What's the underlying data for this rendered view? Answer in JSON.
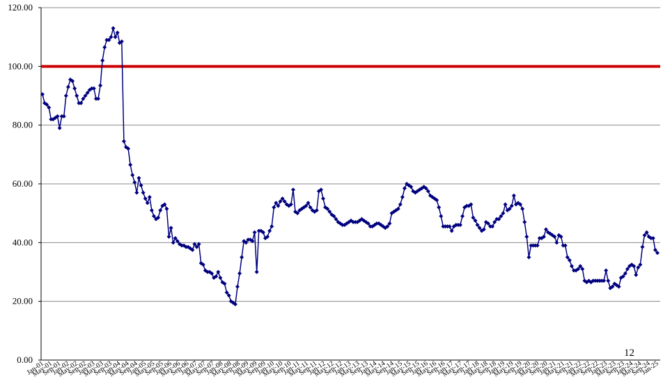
{
  "page_number": "12",
  "chart_data": {
    "type": "line",
    "ylim": [
      0,
      120
    ],
    "yticks": [
      "0.00",
      "20.00",
      "40.00",
      "60.00",
      "80.00",
      "100.00",
      "120.00"
    ],
    "grid": true,
    "reference_line": {
      "value": 100,
      "color": "#cc0000"
    },
    "series_color": "#00007f",
    "xtick_labels": [
      "Jan-01",
      "May-01",
      "Sep-01",
      "Jan-02",
      "May-02",
      "Sep-02",
      "Jan-03",
      "May-03",
      "Sep-03",
      "Jan-04",
      "May-04",
      "Sep-04",
      "Jan-05",
      "May-05",
      "Sep-05",
      "Jan-06",
      "May-06",
      "Sep-06",
      "Jan-07",
      "May-07",
      "Sep-07",
      "Jan-08",
      "May-08",
      "Sep-08",
      "Jan-09",
      "May-09",
      "Sep-09",
      "Jan-10",
      "May-10",
      "Sep-10",
      "Jan-11",
      "May-11",
      "Sep-11",
      "Jan-12",
      "May-12",
      "Sep-12",
      "Jan-13",
      "May-13",
      "Sep-13",
      "Jan-14",
      "May-14",
      "Sep-14",
      "Jan-15",
      "May-15",
      "Sep-15",
      "Jan-16",
      "May-16",
      "Sep-16",
      "Jan-17",
      "May-17",
      "Sep-17",
      "Jan-18",
      "May-18",
      "Sep-18",
      "Jan-19",
      "May-19",
      "Sep-19",
      "Jan-20",
      "May-20",
      "Sep-20",
      "Jan-21",
      "May-21",
      "Sep-21",
      "Jan-22",
      "May-22",
      "Sep-22",
      "Jan-23",
      "May-23",
      "Sep-23",
      "Jan-24",
      "May-24",
      "Sep-24",
      "Jan-25"
    ],
    "series": [
      {
        "values": [
          90.5,
          87.5,
          87,
          86,
          82,
          82,
          82.5,
          83,
          79,
          83,
          83,
          90,
          93,
          95.5,
          95,
          92.5,
          90,
          87.5,
          87.5,
          89,
          90,
          91,
          92,
          92.5,
          92.5,
          89,
          89,
          93.5,
          102,
          106.5,
          109,
          109,
          110,
          113,
          110,
          111.5,
          108,
          108.5,
          74.5,
          72.5,
          72,
          66.5,
          63,
          60.5,
          57,
          62,
          59.5,
          57,
          55,
          53.5,
          55.5,
          51,
          49,
          48,
          48.5,
          51,
          52.5,
          53,
          51.5,
          42,
          45,
          40,
          41.5,
          40.5,
          39.5,
          39,
          39,
          38.5,
          38.5,
          38,
          37.5,
          39.5,
          38.5,
          39.5,
          33,
          32.5,
          30.5,
          30,
          30,
          29.5,
          28,
          28.5,
          30,
          28,
          26.5,
          26,
          23,
          22,
          20,
          19.5,
          19,
          25,
          29.5,
          35,
          40.5,
          40,
          41,
          41,
          40.5,
          43.5,
          30,
          44,
          44,
          43.5,
          41.5,
          42,
          44,
          45.5,
          52,
          53.5,
          52.5,
          54,
          55,
          54,
          53,
          52.5,
          53,
          58,
          50.5,
          50,
          51,
          51.5,
          52,
          52.5,
          53.5,
          52,
          51,
          50.5,
          51,
          57.5,
          58,
          55,
          52,
          51.5,
          50.5,
          49.5,
          49,
          48,
          47,
          46.5,
          46,
          46,
          46.5,
          47,
          47.5,
          47,
          47,
          47,
          47.5,
          48,
          47.5,
          47,
          46.5,
          45.5,
          45.5,
          46,
          46.5,
          46.5,
          46,
          45.5,
          45,
          45.5,
          46.5,
          50,
          50.5,
          51,
          51.5,
          53,
          55.5,
          58.5,
          60,
          59.5,
          59,
          57.5,
          57,
          57.5,
          58,
          58.5,
          59,
          58.5,
          57.5,
          56,
          55.5,
          55,
          54.5,
          52,
          49,
          45.5,
          45.5,
          45.5,
          45.5,
          44,
          45.5,
          46,
          46,
          46,
          49,
          52,
          52.5,
          52.5,
          53,
          48.5,
          47.5,
          46,
          45,
          44,
          44.5,
          47,
          46.5,
          45.5,
          45.5,
          47,
          48,
          48,
          49,
          50,
          53,
          51,
          51.5,
          52.5,
          56,
          53,
          53.5,
          53,
          51.5,
          47,
          42,
          35,
          39,
          39,
          39,
          39,
          41.5,
          41.5,
          42,
          44.5,
          43.5,
          43,
          42.5,
          42,
          40,
          42.5,
          42,
          39,
          39,
          35,
          34,
          32,
          30.5,
          30.5,
          31,
          32,
          31,
          27,
          26.5,
          27,
          26.5,
          27,
          27,
          27,
          27,
          27,
          27,
          30.5,
          27,
          24.5,
          25,
          26,
          25.5,
          25,
          28,
          28.5,
          29.5,
          31,
          32,
          32.5,
          32,
          29,
          31.5,
          32.5,
          38.5,
          42.5,
          43.5,
          42,
          41.5,
          41.5,
          37.5,
          36.5
        ]
      }
    ]
  }
}
